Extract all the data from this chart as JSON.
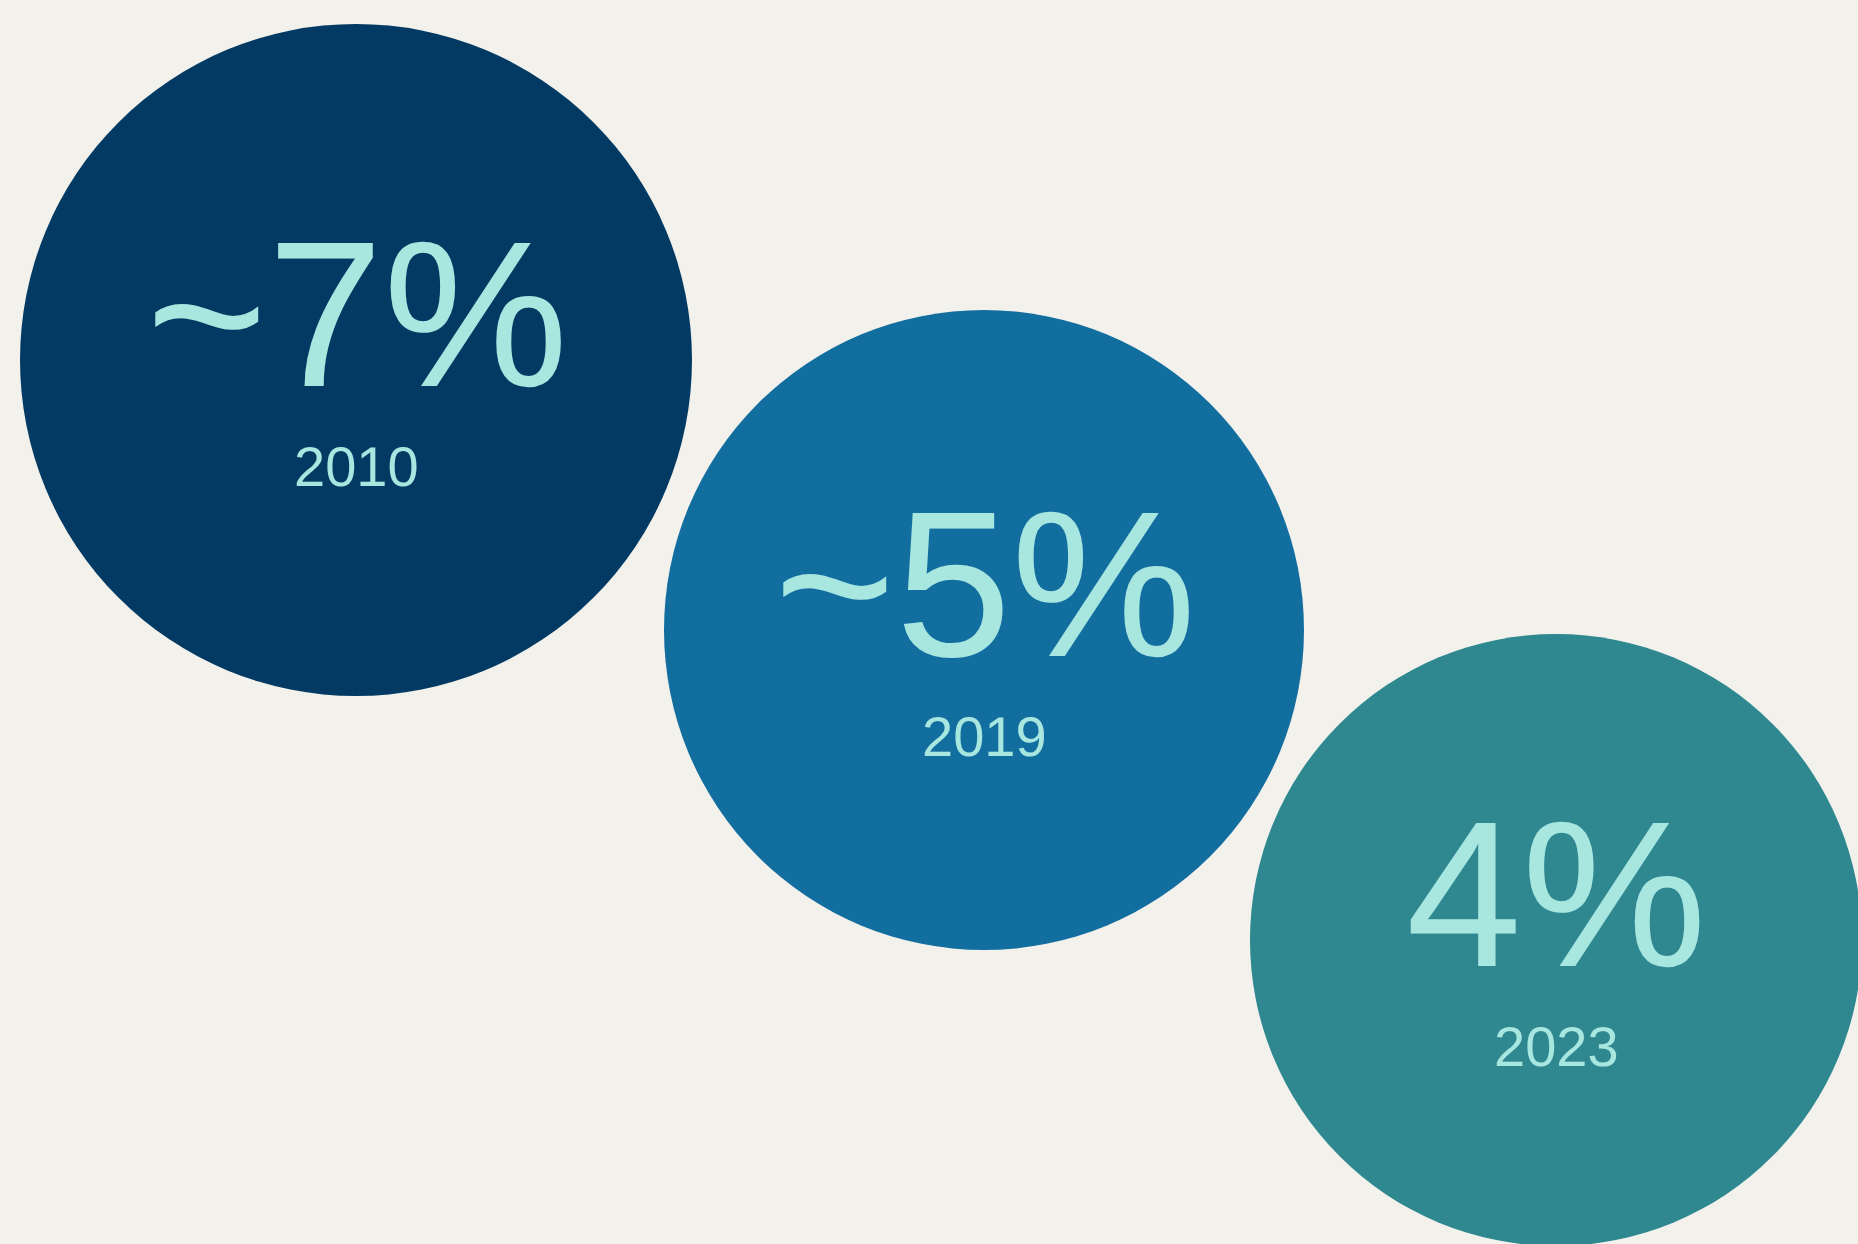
{
  "chart_data": {
    "type": "other",
    "categories": [
      "2010",
      "2019",
      "2023"
    ],
    "values": [
      7,
      5,
      4
    ],
    "value_labels": [
      "~7%",
      "~5%",
      "4%"
    ],
    "colors": [
      "#033a63",
      "#136ea0",
      "#2f8790"
    ]
  }
}
